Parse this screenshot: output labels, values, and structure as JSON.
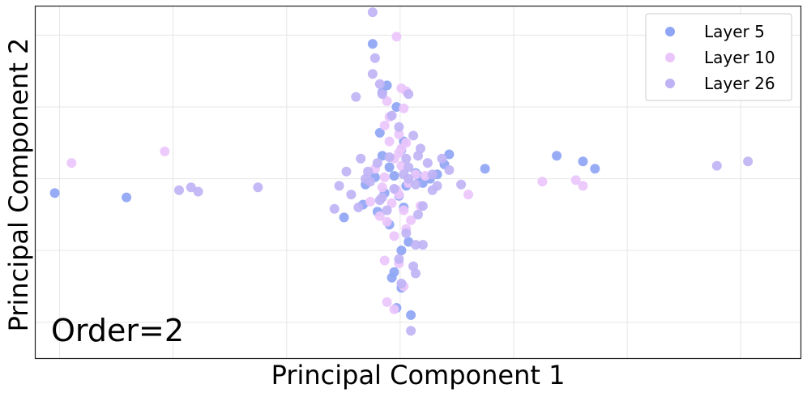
{
  "chart_data": {
    "type": "scatter",
    "title": "",
    "xlabel": "Principal Component 1",
    "ylabel": "Principal Component 2",
    "annotation": "Order=2",
    "xlim": [
      -15,
      17
    ],
    "ylim": [
      -12.5,
      12.0
    ],
    "grid": true,
    "legend_position": "top-right",
    "series": [
      {
        "name": "Layer 5",
        "color": "#8fa5f5",
        "points": [
          [
            -14.2,
            -1.0
          ],
          [
            -11.2,
            -1.3
          ],
          [
            3.8,
            0.7
          ],
          [
            6.8,
            1.6
          ],
          [
            7.9,
            1.2
          ],
          [
            8.4,
            0.7
          ],
          [
            -2.1,
            -2.7
          ],
          [
            -1.2,
            -0.4
          ],
          [
            0.9,
            0.4
          ],
          [
            1.5,
            0.0
          ],
          [
            2.3,
            1.7
          ],
          [
            2.1,
            1.0
          ],
          [
            -0.9,
            9.4
          ],
          [
            -0.3,
            6.5
          ],
          [
            -0.6,
            3.2
          ],
          [
            -0.5,
            1.6
          ],
          [
            0.3,
            2.0
          ],
          [
            0.5,
            -0.5
          ],
          [
            1.0,
            0.2
          ],
          [
            0.6,
            -4.4
          ],
          [
            -0.1,
            -6.9
          ],
          [
            0.3,
            -7.6
          ],
          [
            0.1,
            -9.0
          ],
          [
            0.7,
            -9.5
          ],
          [
            0.0,
            -6.5
          ],
          [
            -1.3,
            -1.8
          ],
          [
            -0.2,
            0.8
          ],
          [
            0.0,
            0.2
          ],
          [
            0.2,
            -1.2
          ],
          [
            0.4,
            -2.0
          ],
          [
            -0.7,
            -2.3
          ],
          [
            1.2,
            -0.3
          ],
          [
            1.8,
            0.3
          ],
          [
            -0.4,
            -1.0
          ],
          [
            -0.8,
            0.1
          ],
          [
            0.1,
            5.0
          ],
          [
            0.4,
            2.6
          ],
          [
            -0.2,
            -3.2
          ],
          [
            0.3,
            -5.0
          ],
          [
            -0.5,
            6.0
          ]
        ]
      },
      {
        "name": "Layer 10",
        "color": "#eac5fb",
        "points": [
          [
            -13.5,
            1.1
          ],
          [
            -9.6,
            1.9
          ],
          [
            6.2,
            -0.2
          ],
          [
            7.6,
            -0.1
          ],
          [
            7.9,
            -0.5
          ],
          [
            3.1,
            -1.1
          ],
          [
            0.1,
            9.9
          ],
          [
            0.3,
            6.3
          ],
          [
            0.5,
            6.1
          ],
          [
            -0.3,
            5.4
          ],
          [
            0.4,
            4.9
          ],
          [
            -0.4,
            3.7
          ],
          [
            0.2,
            3.1
          ],
          [
            0.5,
            2.5
          ],
          [
            0.0,
            1.4
          ],
          [
            0.3,
            0.9
          ],
          [
            -0.4,
            0.1
          ],
          [
            0.6,
            -0.3
          ],
          [
            -0.5,
            -0.6
          ],
          [
            0.2,
            -1.1
          ],
          [
            -0.1,
            -1.7
          ],
          [
            0.4,
            -2.2
          ],
          [
            -0.3,
            -3.0
          ],
          [
            0.5,
            -3.5
          ],
          [
            0.0,
            -4.0
          ],
          [
            -0.4,
            -5.7
          ],
          [
            0.2,
            -5.9
          ],
          [
            0.4,
            -7.5
          ],
          [
            -0.3,
            -8.6
          ],
          [
            0.0,
            -9.1
          ],
          [
            1.1,
            -1.9
          ],
          [
            -1.0,
            -1.6
          ],
          [
            0.9,
            0.3
          ],
          [
            -0.8,
            0.7
          ],
          [
            1.3,
            0.2
          ],
          [
            -0.2,
            4.3
          ],
          [
            0.3,
            2.1
          ],
          [
            0.1,
            -0.8
          ],
          [
            -0.6,
            -2.6
          ],
          [
            0.7,
            -2.9
          ],
          [
            0.2,
            1.8
          ],
          [
            -0.2,
            2.6
          ]
        ]
      },
      {
        "name": "Layer 26",
        "color": "#c0b3f5",
        "points": [
          [
            -9.0,
            -0.8
          ],
          [
            -8.2,
            -0.9
          ],
          [
            -8.5,
            -0.6
          ],
          [
            -5.7,
            -0.6
          ],
          [
            13.5,
            0.9
          ],
          [
            14.8,
            1.2
          ],
          [
            -0.9,
            11.6
          ],
          [
            -0.8,
            8.4
          ],
          [
            -0.9,
            7.3
          ],
          [
            -0.6,
            6.6
          ],
          [
            -1.6,
            5.7
          ],
          [
            -0.5,
            5.9
          ],
          [
            0.6,
            5.9
          ],
          [
            0.8,
            3.0
          ],
          [
            1.1,
            2.1
          ],
          [
            0.5,
            1.4
          ],
          [
            -0.7,
            1.1
          ],
          [
            1.4,
            1.1
          ],
          [
            2.0,
            1.4
          ],
          [
            -1.1,
            0.5
          ],
          [
            -2.0,
            0.5
          ],
          [
            0.4,
            0.3
          ],
          [
            1.6,
            0.3
          ],
          [
            2.3,
            0.6
          ],
          [
            -2.3,
            -0.5
          ],
          [
            -1.0,
            -0.2
          ],
          [
            0.9,
            -0.4
          ],
          [
            1.8,
            -0.5
          ],
          [
            2.8,
            -0.4
          ],
          [
            -2.5,
            -2.1
          ],
          [
            -1.5,
            -2.0
          ],
          [
            1.2,
            -1.9
          ],
          [
            1.0,
            -2.5
          ],
          [
            -0.3,
            -2.2
          ],
          [
            0.5,
            -3.8
          ],
          [
            1.2,
            -4.6
          ],
          [
            0.9,
            -4.6
          ],
          [
            0.2,
            -5.6
          ],
          [
            0.8,
            -6.1
          ],
          [
            0.9,
            -6.6
          ],
          [
            0.3,
            -7.3
          ],
          [
            0.7,
            -10.6
          ],
          [
            -0.5,
            -1.3
          ],
          [
            0.0,
            -0.7
          ],
          [
            -0.2,
            1.5
          ],
          [
            0.6,
            0.8
          ],
          [
            -1.4,
            1.4
          ],
          [
            1.6,
            -0.8
          ],
          [
            -1.8,
            -1.1
          ],
          [
            0.2,
            3.6
          ],
          [
            -0.1,
            4.4
          ],
          [
            0.6,
            0.0
          ],
          [
            -0.6,
            -1.5
          ],
          [
            1.0,
            1.6
          ],
          [
            -1.2,
            0.0
          ]
        ]
      }
    ]
  }
}
